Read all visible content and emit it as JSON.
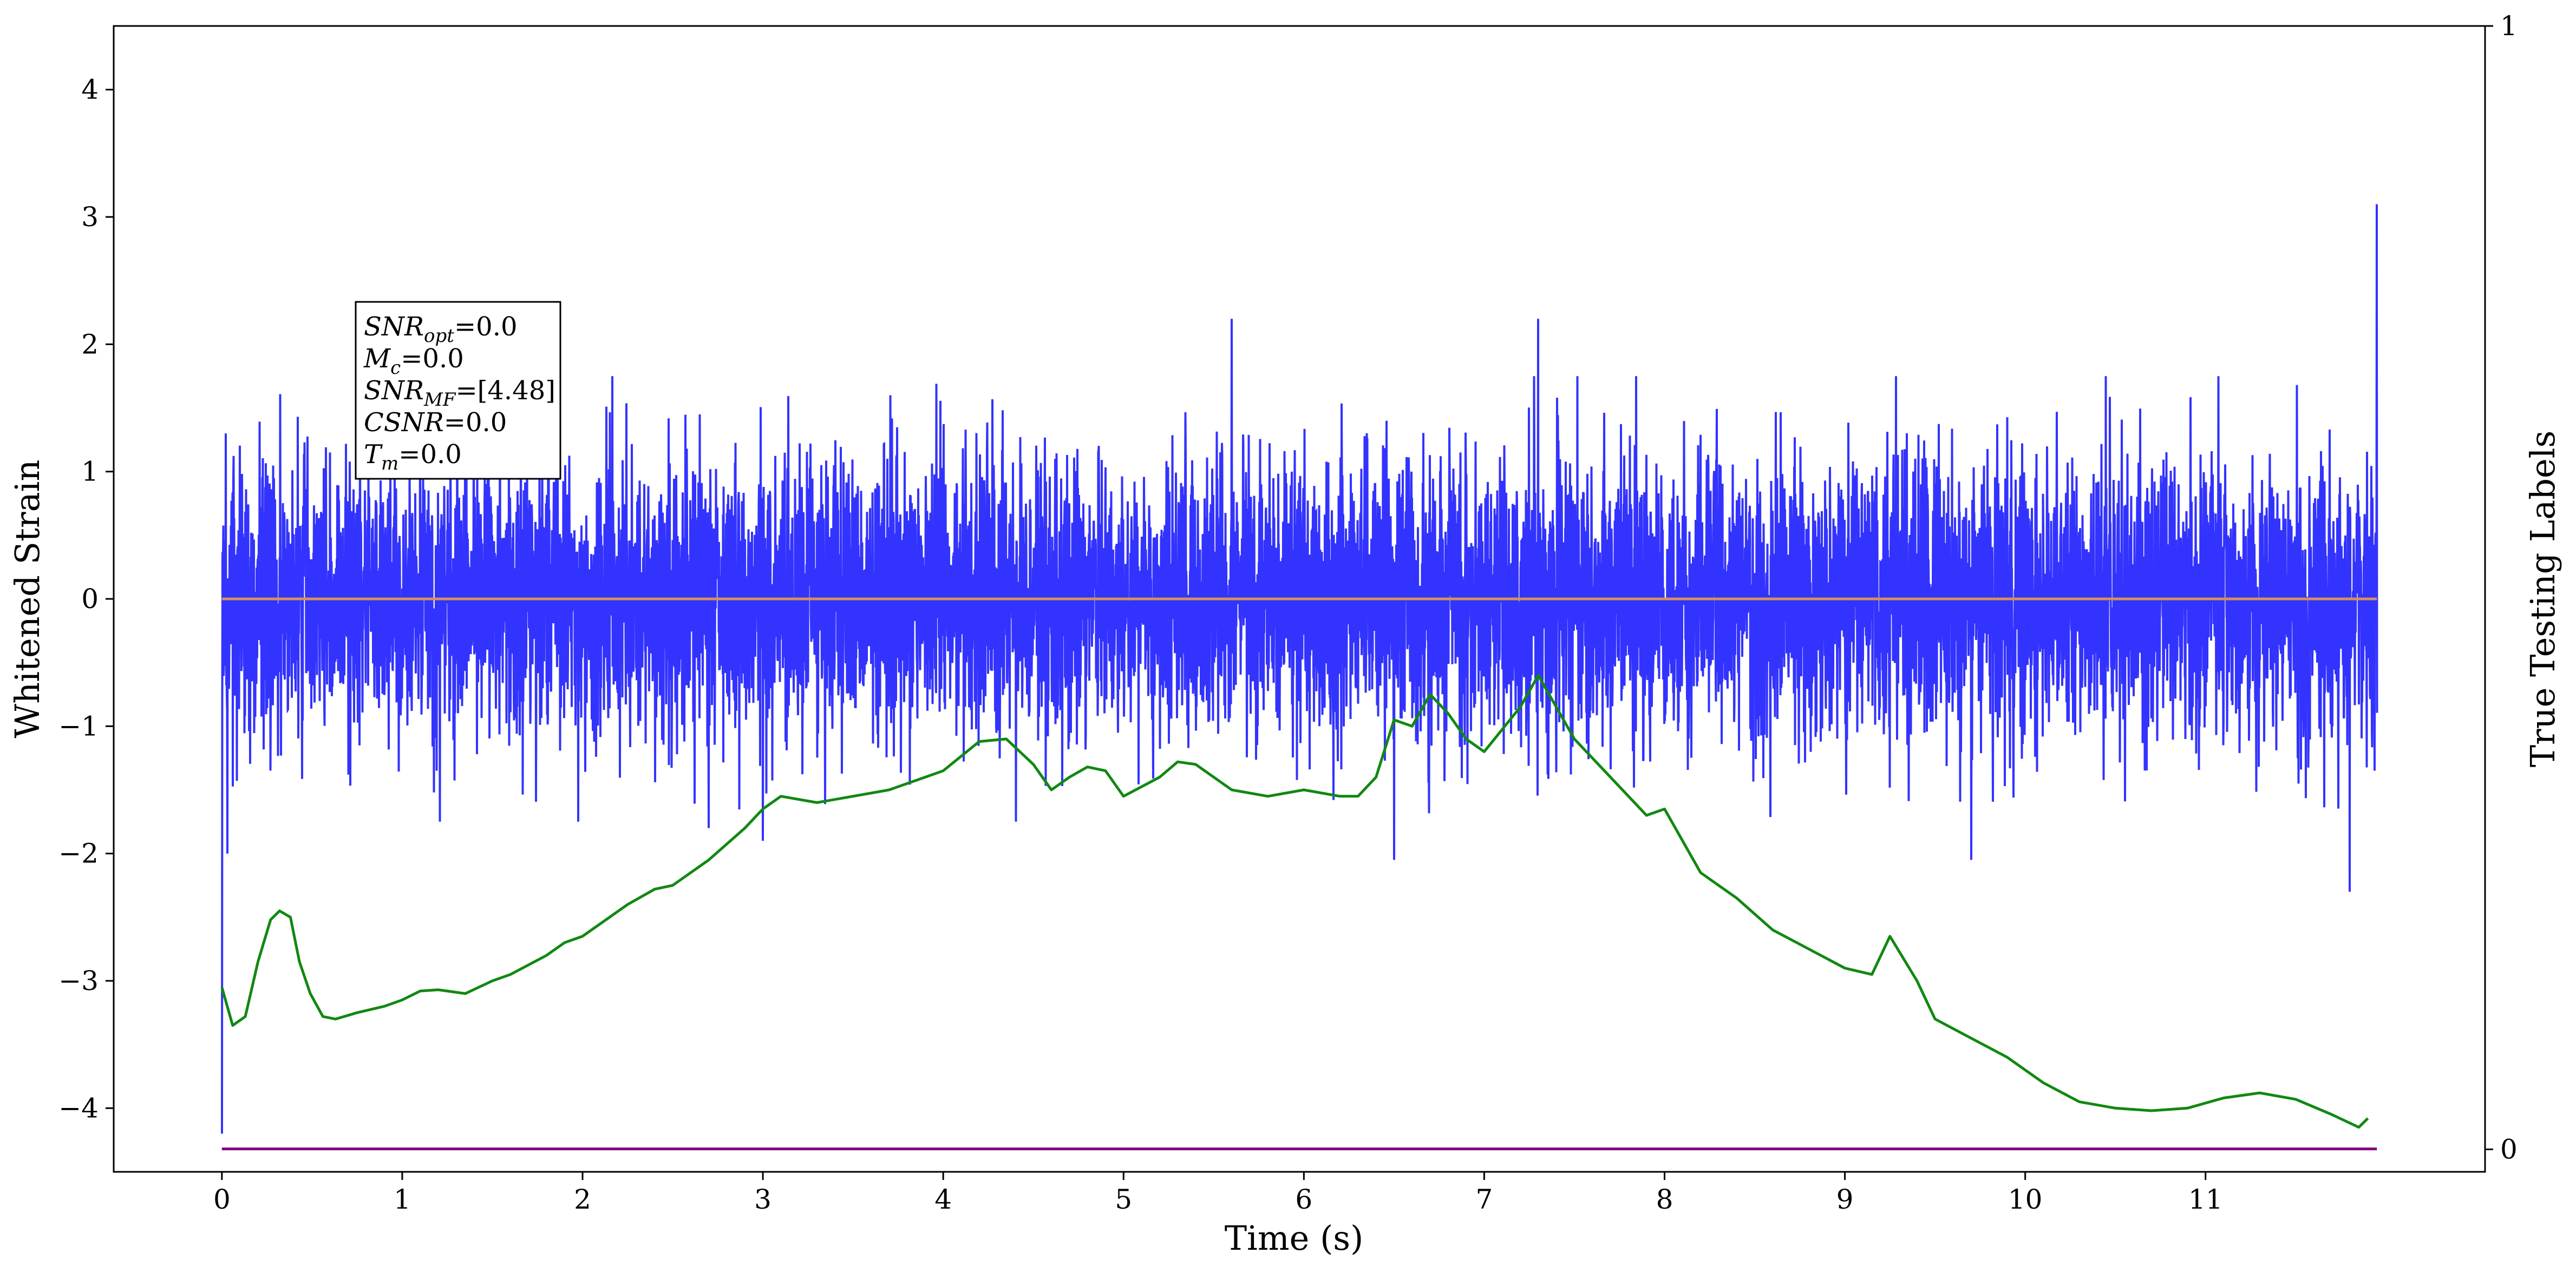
{
  "chart_data": {
    "type": "line",
    "title": "",
    "xlabel": "Time (s)",
    "ylabel": "Whitened Strain",
    "ylabel_right": "True Testing Labels",
    "xlim": [
      -0.6,
      12.55
    ],
    "ylim": [
      -4.5,
      4.5
    ],
    "ylim_right": [
      -0.02,
      1.0
    ],
    "x_ticks": [
      0,
      1,
      2,
      3,
      4,
      5,
      6,
      7,
      8,
      9,
      10,
      11
    ],
    "x_tick_labels": [
      "0",
      "1",
      "2",
      "3",
      "4",
      "5",
      "6",
      "7",
      "8",
      "9",
      "10",
      "11"
    ],
    "y_ticks": [
      4,
      3,
      2,
      1,
      0,
      -1,
      -2,
      -3,
      -4
    ],
    "y_tick_labels": [
      "4",
      "3",
      "2",
      "1",
      "0",
      "−1",
      "−2",
      "−3",
      "−4"
    ],
    "y_right_ticks": [
      1,
      0
    ],
    "y_right_tick_labels": [
      "1",
      "0"
    ],
    "grid": false,
    "legend": "none",
    "annotation_box": {
      "lines": [
        {
          "var": "SNR",
          "sub": "opt",
          "eq": "=0.0"
        },
        {
          "var": "M",
          "sub": "c",
          "eq": "=0.0"
        },
        {
          "var": "SNR",
          "sub": "MF",
          "eq": "=[4.48]"
        },
        {
          "var": "CSNR",
          "sub": "",
          "eq": "=0.0"
        },
        {
          "var": "T",
          "sub": "m",
          "eq": "=0.0"
        }
      ]
    },
    "series": [
      {
        "role": "whitened-strain",
        "color": "#3333ff",
        "x_range": [
          0,
          11.95
        ],
        "noise_sigma": 0.55,
        "notes_visible": "dense noise trace",
        "spikes": [
          {
            "x": 0.0,
            "y": -4.2
          },
          {
            "x": 0.02,
            "y": 1.3
          },
          {
            "x": 0.03,
            "y": -2.0
          },
          {
            "x": 1.1,
            "y": 1.9
          },
          {
            "x": 2.7,
            "y": -1.8
          },
          {
            "x": 3.0,
            "y": -1.9
          },
          {
            "x": 5.6,
            "y": 2.2
          },
          {
            "x": 6.5,
            "y": -2.05
          },
          {
            "x": 7.3,
            "y": 2.2
          },
          {
            "x": 9.7,
            "y": -2.05
          },
          {
            "x": 11.8,
            "y": -2.3
          },
          {
            "x": 11.95,
            "y": 3.1
          }
        ]
      },
      {
        "role": "flat-orange",
        "color": "#d2935a",
        "x": [
          0,
          11.95
        ],
        "y": [
          0,
          0
        ]
      },
      {
        "role": "green-curve",
        "color": "#118811",
        "x": [
          0.0,
          0.06,
          0.13,
          0.2,
          0.27,
          0.32,
          0.38,
          0.43,
          0.49,
          0.56,
          0.63,
          0.75,
          0.9,
          1.0,
          1.1,
          1.2,
          1.35,
          1.5,
          1.6,
          1.8,
          1.9,
          2.0,
          2.15,
          2.25,
          2.4,
          2.5,
          2.7,
          2.9,
          3.0,
          3.1,
          3.3,
          3.5,
          3.7,
          3.9,
          4.0,
          4.2,
          4.35,
          4.5,
          4.6,
          4.7,
          4.8,
          4.9,
          5.0,
          5.2,
          5.3,
          5.4,
          5.6,
          5.8,
          6.0,
          6.2,
          6.3,
          6.4,
          6.5,
          6.6,
          6.7,
          6.8,
          6.9,
          7.0,
          7.2,
          7.3,
          7.5,
          7.7,
          7.9,
          8.0,
          8.2,
          8.4,
          8.6,
          8.8,
          9.0,
          9.15,
          9.25,
          9.4,
          9.5,
          9.7,
          9.9,
          10.1,
          10.3,
          10.5,
          10.7,
          10.9,
          11.1,
          11.3,
          11.5,
          11.7,
          11.85,
          11.9
        ],
        "y": [
          -3.05,
          -3.35,
          -3.28,
          -2.85,
          -2.52,
          -2.45,
          -2.5,
          -2.85,
          -3.1,
          -3.28,
          -3.3,
          -3.25,
          -3.2,
          -3.15,
          -3.08,
          -3.07,
          -3.1,
          -3.0,
          -2.95,
          -2.8,
          -2.7,
          -2.65,
          -2.5,
          -2.4,
          -2.28,
          -2.25,
          -2.05,
          -1.8,
          -1.65,
          -1.55,
          -1.6,
          -1.55,
          -1.5,
          -1.4,
          -1.35,
          -1.12,
          -1.1,
          -1.3,
          -1.5,
          -1.4,
          -1.32,
          -1.35,
          -1.55,
          -1.4,
          -1.28,
          -1.3,
          -1.5,
          -1.55,
          -1.5,
          -1.55,
          -1.55,
          -1.4,
          -0.95,
          -1.0,
          -0.75,
          -0.9,
          -1.1,
          -1.2,
          -0.85,
          -0.6,
          -1.1,
          -1.4,
          -1.7,
          -1.65,
          -2.15,
          -2.35,
          -2.6,
          -2.75,
          -2.9,
          -2.95,
          -2.65,
          -3.0,
          -3.3,
          -3.45,
          -3.6,
          -3.8,
          -3.95,
          -4.0,
          -4.02,
          -4.0,
          -3.92,
          -3.88,
          -3.93,
          -4.05,
          -4.15,
          -4.08
        ]
      },
      {
        "role": "flat-purple",
        "color": "#800080",
        "x": [
          0,
          11.95
        ],
        "y": [
          -4.32,
          -4.32
        ]
      }
    ]
  }
}
